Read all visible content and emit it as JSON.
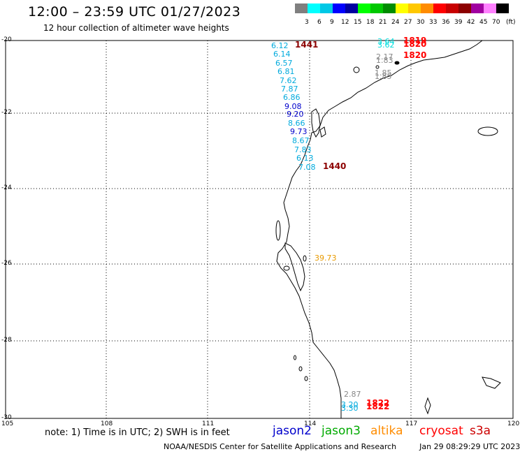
{
  "header": {
    "title": "12:00 – 23:59 UTC 01/27/2023",
    "subtitle": "12 hour collection of altimeter wave heights"
  },
  "legend": {
    "labels": [
      "3",
      "6",
      "9",
      "12",
      "15",
      "18",
      "21",
      "24",
      "27",
      "30",
      "33",
      "36",
      "39",
      "42",
      "45",
      "70"
    ],
    "unit": "(ft)",
    "colors": [
      "#7f7f7f",
      "#00ffff",
      "#00c8e6",
      "#0000ff",
      "#0000a0",
      "#00ff00",
      "#00c800",
      "#008c00",
      "#ffff00",
      "#ffc800",
      "#ff8c00",
      "#ff0000",
      "#c80000",
      "#8c0000",
      "#a000a0",
      "#ff80ff",
      "#000000"
    ]
  },
  "map": {
    "lat_labels": [
      "-20",
      "-22",
      "-24",
      "-26",
      "-28",
      "-30"
    ],
    "lon_labels": [
      "105",
      "108",
      "111",
      "114",
      "117",
      "120"
    ]
  },
  "wave_labels": [
    {
      "text": "6.12",
      "color": "#00aadd"
    },
    {
      "text": "6.14",
      "color": "#00aadd"
    },
    {
      "text": "6.57",
      "color": "#00aadd"
    },
    {
      "text": "6.81",
      "color": "#00aadd"
    },
    {
      "text": "7.62",
      "color": "#00aadd"
    },
    {
      "text": "7.87",
      "color": "#00aadd"
    },
    {
      "text": "6.86",
      "color": "#00aadd"
    },
    {
      "text": "9.08",
      "color": "#0000cc"
    },
    {
      "text": "9.20",
      "color": "#0000cc"
    },
    {
      "text": "8.66",
      "color": "#00aadd"
    },
    {
      "text": "9.73",
      "color": "#0000cc"
    },
    {
      "text": "8.67",
      "color": "#00aadd"
    },
    {
      "text": "7.83",
      "color": "#00aadd"
    },
    {
      "text": "6.13",
      "color": "#00aadd"
    },
    {
      "text": "7.08",
      "color": "#00aadd"
    },
    {
      "text": "3.64",
      "color": "#00dddd"
    },
    {
      "text": "3.62",
      "color": "#00dddd"
    },
    {
      "text": "2.17",
      "color": "#888888"
    },
    {
      "text": "1.83",
      "color": "#888888"
    },
    {
      "text": "1.85",
      "color": "#888888"
    },
    {
      "text": "1.85",
      "color": "#888888"
    },
    {
      "text": "39.73",
      "color": "#e89a00"
    },
    {
      "text": "2.87",
      "color": "#888888"
    },
    {
      "text": "3.20",
      "color": "#00aadd"
    },
    {
      "text": "3.30",
      "color": "#00aadd"
    }
  ],
  "time_labels": [
    {
      "text": "1441",
      "color": "#8c0000"
    },
    {
      "text": "1440",
      "color": "#8c0000"
    },
    {
      "text": "1819",
      "color": "#ff0000"
    },
    {
      "text": "1820",
      "color": "#ff0000"
    },
    {
      "text": "1820",
      "color": "#ff0000"
    },
    {
      "text": "1822",
      "color": "#ff0000"
    },
    {
      "text": "1822",
      "color": "#ff0000"
    }
  ],
  "footer": {
    "note": "note: 1) Time is in UTC; 2) SWH is in feet",
    "satellites": [
      {
        "name": "jason2",
        "color": "#0000cc"
      },
      {
        "name": "jason3",
        "color": "#00aa00"
      },
      {
        "name": "altika",
        "color": "#ff8c00"
      },
      {
        "name": "cryosat",
        "color": "#ff0000"
      },
      {
        "name": "s3a",
        "color": "#cc0000"
      }
    ],
    "credit": "NOAA/NESDIS Center for Satellite Applications and Research",
    "generated": "Jan 29 08:29:29 UTC 2023"
  }
}
